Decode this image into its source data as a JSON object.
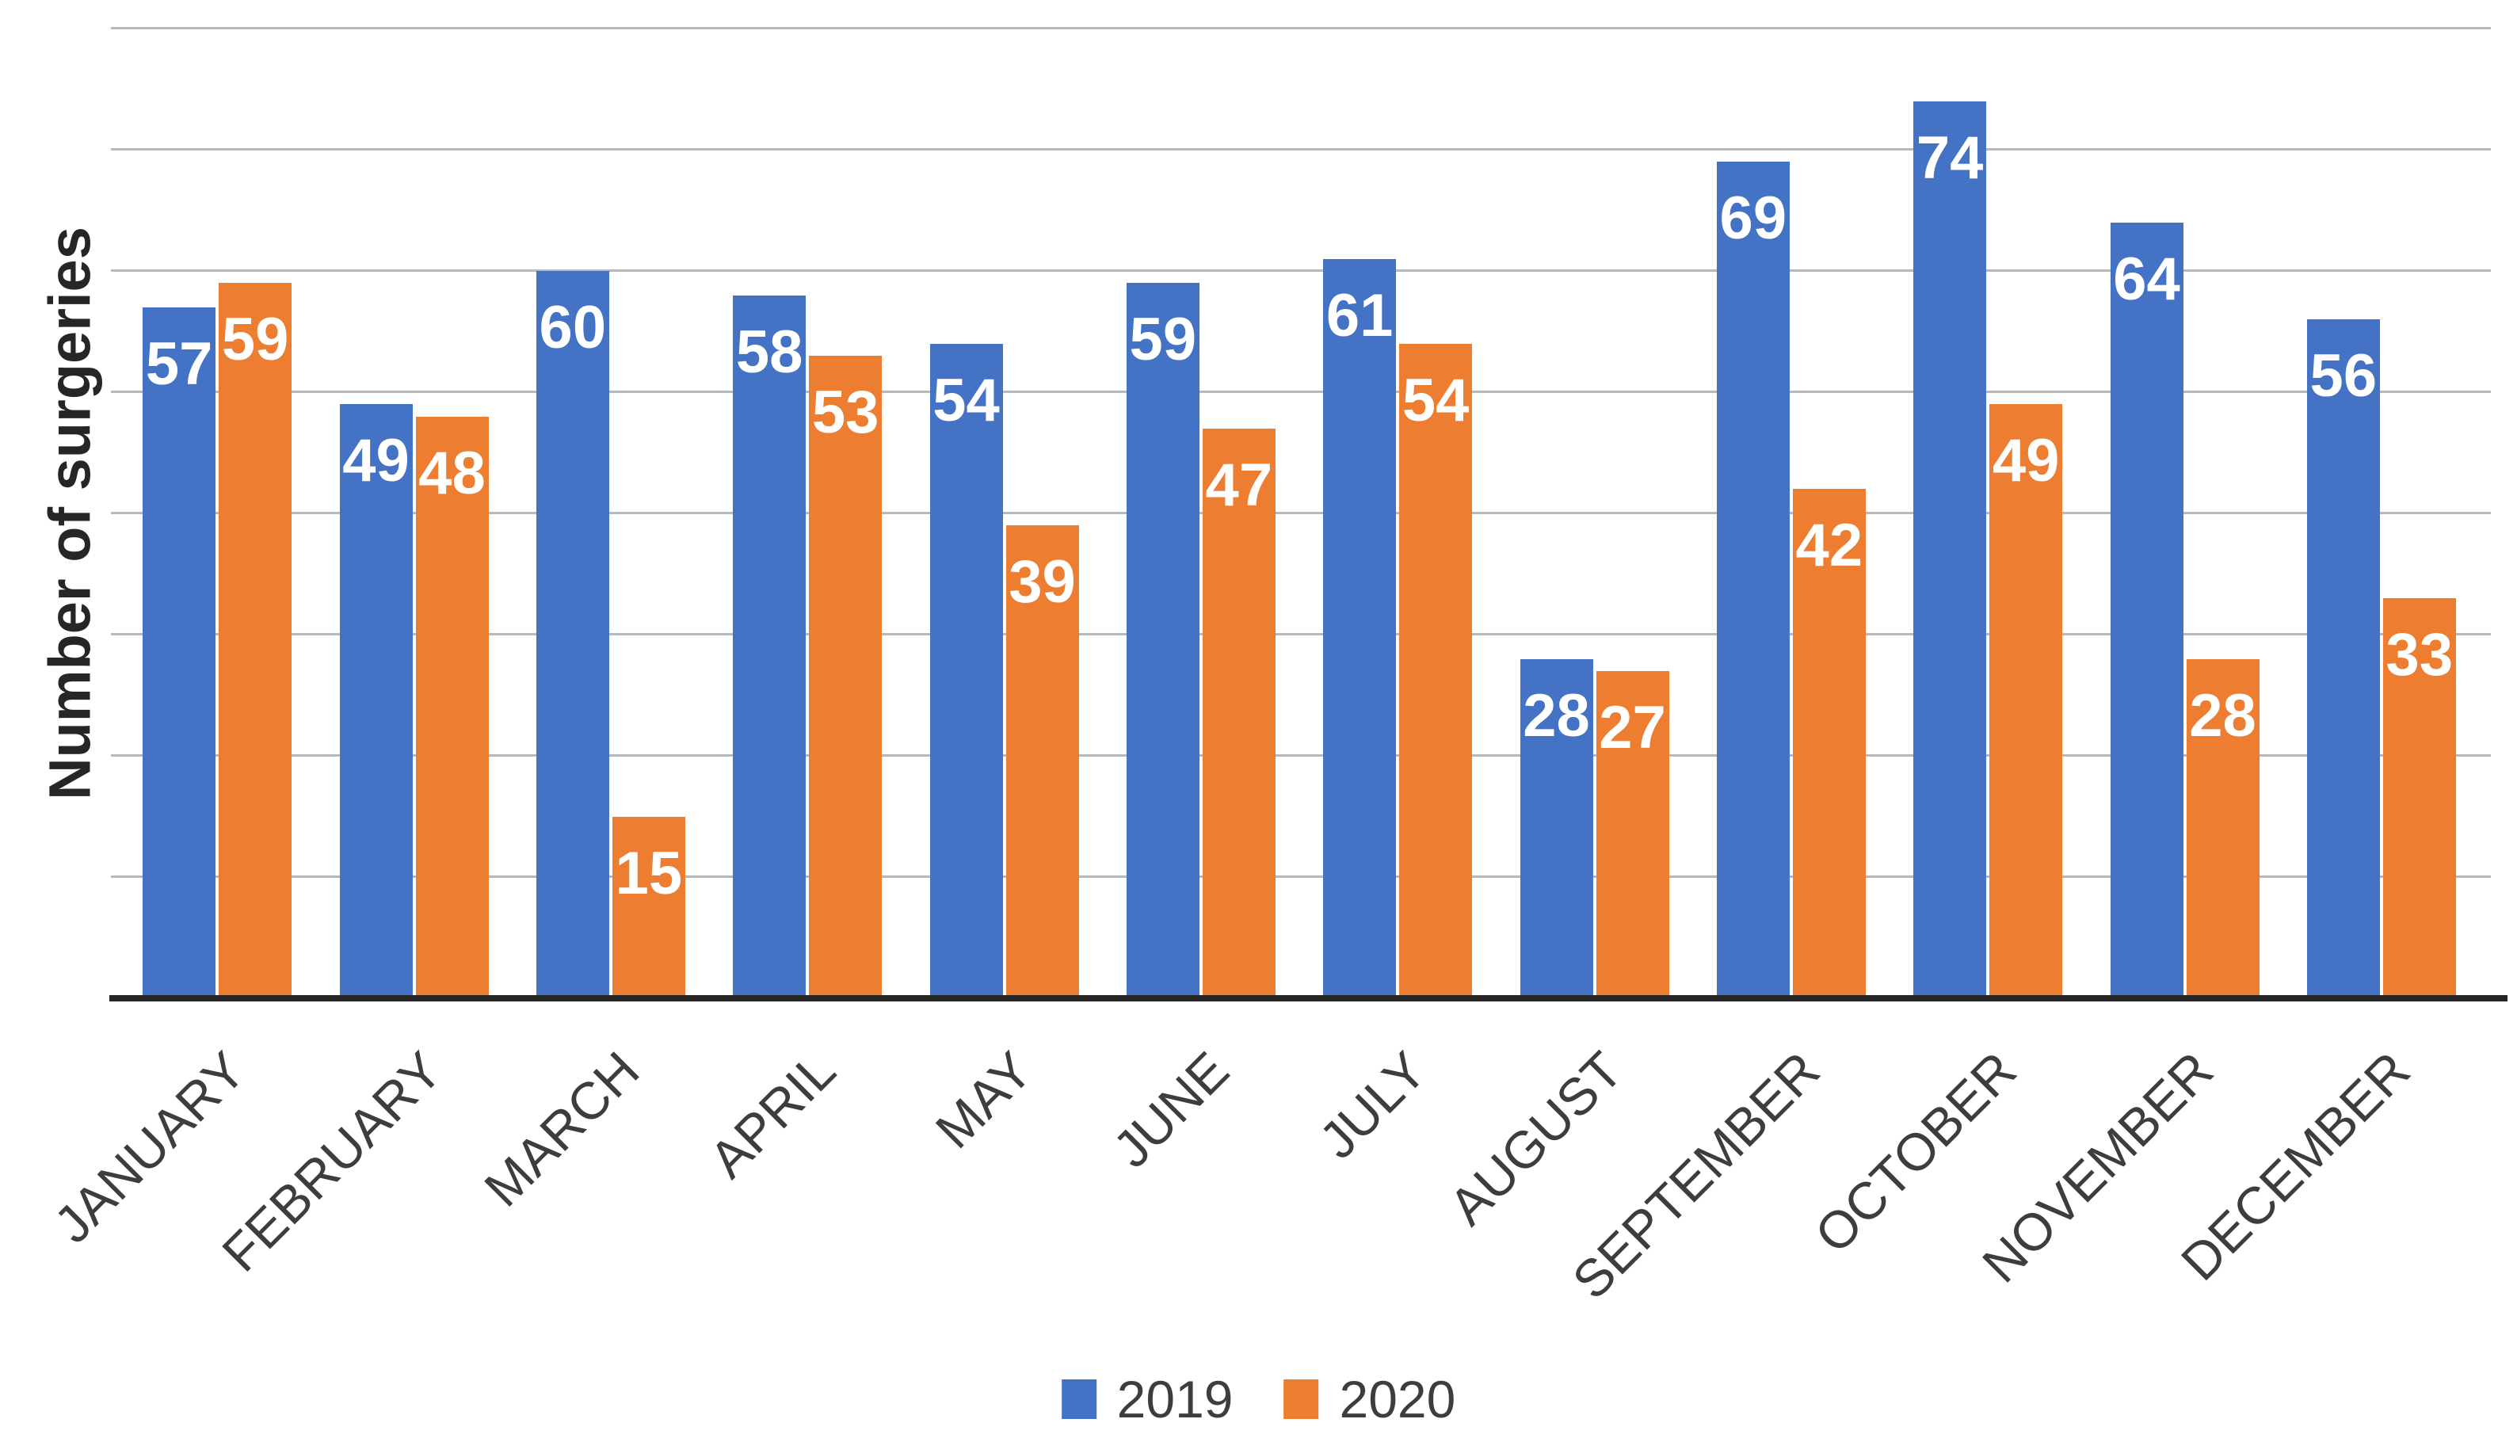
{
  "chart_data": {
    "type": "bar",
    "title": "",
    "ylabel": "Number of surgeries",
    "xlabel": "",
    "categories": [
      "JANUARY",
      "FEBRUARY",
      "MARCH",
      "APRIL",
      "MAY",
      "JUNE",
      "JULY",
      "AUGUST",
      "SEPTEMBER",
      "OCTOBER",
      "NOVEMBER",
      "DECEMBER"
    ],
    "series": [
      {
        "name": "2019",
        "color": "#4472C4",
        "values": [
          57,
          49,
          60,
          58,
          54,
          59,
          61,
          28,
          69,
          74,
          64,
          56
        ]
      },
      {
        "name": "2020",
        "color": "#ED7D31",
        "values": [
          59,
          48,
          15,
          53,
          39,
          47,
          54,
          27,
          42,
          49,
          28,
          33
        ]
      }
    ],
    "ylim": [
      0,
      80
    ],
    "grid_step": 10,
    "grid": true,
    "legend_position": "bottom",
    "value_labels_position": "inside-end",
    "value_label_color": "#FFFFFF"
  },
  "colors": {
    "background": "#ffffff",
    "grid_line": "#b9b9b9",
    "axis_line": "#262626",
    "axis_text": "#3d3d3d",
    "series_2019": "#4472C4",
    "series_2020": "#ED7D31"
  }
}
